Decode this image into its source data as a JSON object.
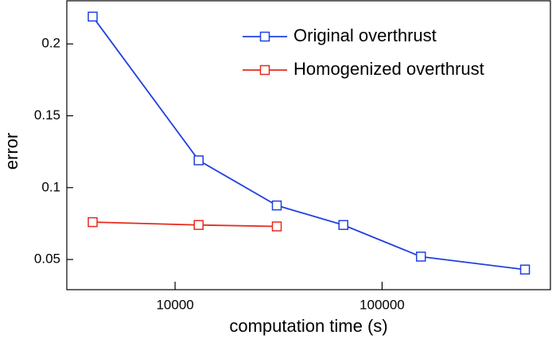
{
  "chart_data": {
    "type": "line",
    "xlabel": "computation time (s)",
    "ylabel": "error",
    "xscale": "log",
    "xlim": [
      3000,
      650000
    ],
    "xticks": [
      10000,
      100000
    ],
    "ylim": [
      0.029,
      0.23
    ],
    "yticks": [
      0.05,
      0.1,
      0.15,
      0.2
    ],
    "legend": "upper right",
    "marker": "square",
    "series": [
      {
        "name": "Original overthrust",
        "color": "#2040e0",
        "x": [
          4000,
          13000,
          31000,
          65000,
          154000,
          490000
        ],
        "values": [
          0.219,
          0.119,
          0.0876,
          0.074,
          0.052,
          0.043
        ]
      },
      {
        "name": "Homogenized overthrust",
        "color": "#e62a1f",
        "x": [
          4000,
          13000,
          31000
        ],
        "values": [
          0.076,
          0.074,
          0.073
        ]
      }
    ]
  }
}
